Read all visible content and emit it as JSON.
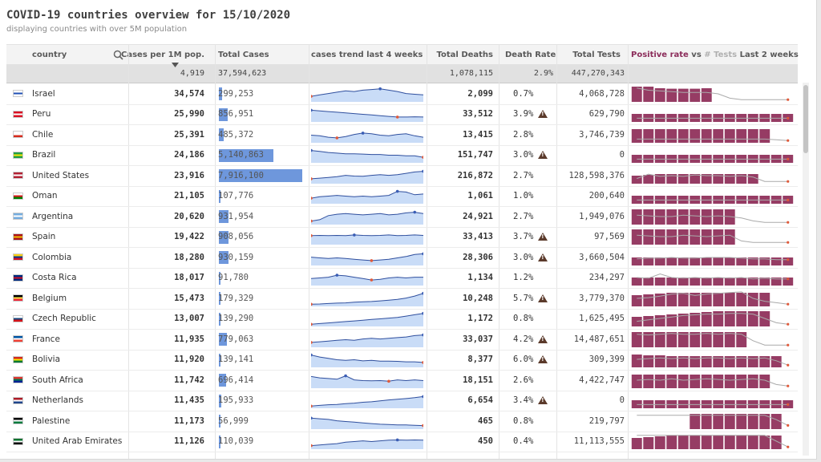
{
  "title": "COVID-19 countries overview for 15/10/2020",
  "subtitle": "displaying countries with over 5M population",
  "headers": {
    "country": "country",
    "per_million": "Cases per 1M pop.",
    "total_cases": "Total Cases",
    "trend": "cases trend last 4 weeks",
    "deaths": "Total Deaths",
    "death_rate": "Death Rate",
    "tests": "Total Tests",
    "positive_rate": "Positive rate",
    "vs": "vs",
    "hash": "#",
    "tests_word": "Tests",
    "last_2_weeks": "Last 2 weeks"
  },
  "totals": {
    "per_million": "4,919",
    "total_cases": "37,594,623",
    "deaths": "1,078,115",
    "death_rate": "2.9%",
    "tests": "447,270,343"
  },
  "colors": {
    "bar_blue": "#6e97dc",
    "positive_bar": "#963c64",
    "tests_line": "#aaaaaa",
    "trend_fill": "#c9dcf7",
    "trend_line": "#2f4f9e",
    "warning": "#5b3a2b"
  },
  "icons": {
    "search": "search-icon",
    "sort": "sort-desc-icon",
    "warning": "warning-triangle-icon"
  },
  "rows": [
    {
      "country": "Israel",
      "per_million": "34,574",
      "total_cases": "299,253",
      "cases_value": 299253,
      "deaths": "2,099",
      "death_rate": "0.7%",
      "warning": false,
      "tests": "4,068,728",
      "flag": [
        "#ffffff",
        "#1f4fb4",
        "#ffffff"
      ]
    },
    {
      "country": "Peru",
      "per_million": "25,990",
      "total_cases": "856,951",
      "cases_value": 856951,
      "deaths": "33,512",
      "death_rate": "3.9%",
      "warning": true,
      "tests": "629,790",
      "flag": [
        "#d91023",
        "#ffffff",
        "#d91023"
      ]
    },
    {
      "country": "Chile",
      "per_million": "25,391",
      "total_cases": "485,372",
      "cases_value": 485372,
      "deaths": "13,415",
      "death_rate": "2.8%",
      "warning": false,
      "tests": "3,746,739",
      "flag": [
        "#ffffff",
        "#ffffff",
        "#d52b1e"
      ]
    },
    {
      "country": "Brazil",
      "per_million": "24,186",
      "total_cases": "5,140,863",
      "cases_value": 5140863,
      "deaths": "151,747",
      "death_rate": "3.0%",
      "warning": true,
      "tests": "0",
      "flag": [
        "#229e45",
        "#f8e509",
        "#229e45"
      ]
    },
    {
      "country": "United States",
      "per_million": "23,916",
      "total_cases": "7,916,100",
      "cases_value": 7916100,
      "deaths": "216,872",
      "death_rate": "2.7%",
      "warning": false,
      "tests": "128,598,376",
      "flag": [
        "#b22234",
        "#ffffff",
        "#b22234"
      ]
    },
    {
      "country": "Oman",
      "per_million": "21,105",
      "total_cases": "107,776",
      "cases_value": 107776,
      "deaths": "1,061",
      "death_rate": "1.0%",
      "warning": false,
      "tests": "200,640",
      "flag": [
        "#ffffff",
        "#db161b",
        "#008000"
      ]
    },
    {
      "country": "Argentina",
      "per_million": "20,620",
      "total_cases": "931,954",
      "cases_value": 931954,
      "deaths": "24,921",
      "death_rate": "2.7%",
      "warning": false,
      "tests": "1,949,076",
      "flag": [
        "#74acdf",
        "#ffffff",
        "#74acdf"
      ]
    },
    {
      "country": "Spain",
      "per_million": "19,422",
      "total_cases": "908,056",
      "cases_value": 908056,
      "deaths": "33,413",
      "death_rate": "3.7%",
      "warning": true,
      "tests": "97,569",
      "flag": [
        "#aa151b",
        "#f1bf00",
        "#aa151b"
      ]
    },
    {
      "country": "Colombia",
      "per_million": "18,280",
      "total_cases": "930,159",
      "cases_value": 930159,
      "deaths": "28,306",
      "death_rate": "3.0%",
      "warning": true,
      "tests": "3,660,504",
      "flag": [
        "#fcd116",
        "#003893",
        "#ce1126"
      ]
    },
    {
      "country": "Costa Rica",
      "per_million": "18,017",
      "total_cases": "91,780",
      "cases_value": 91780,
      "deaths": "1,134",
      "death_rate": "1.2%",
      "warning": false,
      "tests": "234,297",
      "flag": [
        "#002b7f",
        "#ce1126",
        "#002b7f"
      ]
    },
    {
      "country": "Belgium",
      "per_million": "15,473",
      "total_cases": "179,329",
      "cases_value": 179329,
      "deaths": "10,248",
      "death_rate": "5.7%",
      "warning": true,
      "tests": "3,779,370",
      "flag": [
        "#000000",
        "#fae042",
        "#ed2939"
      ]
    },
    {
      "country": "Czech Republic",
      "per_million": "13,007",
      "total_cases": "139,290",
      "cases_value": 139290,
      "deaths": "1,172",
      "death_rate": "0.8%",
      "warning": false,
      "tests": "1,625,495",
      "flag": [
        "#ffffff",
        "#11457e",
        "#d7141a"
      ]
    },
    {
      "country": "France",
      "per_million": "11,935",
      "total_cases": "779,063",
      "cases_value": 779063,
      "deaths": "33,037",
      "death_rate": "4.2%",
      "warning": true,
      "tests": "14,487,651",
      "flag": [
        "#0055a4",
        "#ffffff",
        "#ef4135"
      ]
    },
    {
      "country": "Bolivia",
      "per_million": "11,920",
      "total_cases": "139,141",
      "cases_value": 139141,
      "deaths": "8,377",
      "death_rate": "6.0%",
      "warning": true,
      "tests": "309,399",
      "flag": [
        "#d52b1e",
        "#f9e300",
        "#007934"
      ]
    },
    {
      "country": "South Africa",
      "per_million": "11,742",
      "total_cases": "696,414",
      "cases_value": 696414,
      "deaths": "18,151",
      "death_rate": "2.6%",
      "warning": false,
      "tests": "4,422,747",
      "flag": [
        "#de3831",
        "#007a4d",
        "#002395"
      ]
    },
    {
      "country": "Netherlands",
      "per_million": "11,435",
      "total_cases": "195,933",
      "cases_value": 195933,
      "deaths": "6,654",
      "death_rate": "3.4%",
      "warning": true,
      "tests": "0",
      "flag": [
        "#ae1c28",
        "#ffffff",
        "#21468b"
      ]
    },
    {
      "country": "Palestine",
      "per_million": "11,173",
      "total_cases": "56,999",
      "cases_value": 56999,
      "deaths": "465",
      "death_rate": "0.8%",
      "warning": false,
      "tests": "219,797",
      "flag": [
        "#000000",
        "#ffffff",
        "#007a3d"
      ]
    },
    {
      "country": "United Arab Emirates",
      "per_million": "11,126",
      "total_cases": "110,039",
      "cases_value": 110039,
      "deaths": "450",
      "death_rate": "0.4%",
      "warning": false,
      "tests": "11,113,555",
      "flag": [
        "#00732f",
        "#ffffff",
        "#000000"
      ]
    }
  ],
  "trends": [
    [
      0.35,
      0.45,
      0.55,
      0.65,
      0.75,
      0.7,
      0.8,
      0.85,
      0.9,
      0.8,
      0.7,
      0.55,
      0.5,
      0.45
    ],
    [
      0.8,
      0.75,
      0.7,
      0.65,
      0.6,
      0.55,
      0.5,
      0.45,
      0.4,
      0.35,
      0.3,
      0.3,
      0.32,
      0.3
    ],
    [
      0.5,
      0.45,
      0.35,
      0.3,
      0.4,
      0.55,
      0.65,
      0.6,
      0.5,
      0.45,
      0.55,
      0.6,
      0.45,
      0.35
    ],
    [
      0.85,
      0.78,
      0.7,
      0.65,
      0.6,
      0.6,
      0.58,
      0.55,
      0.55,
      0.5,
      0.5,
      0.45,
      0.45,
      0.35
    ],
    [
      0.3,
      0.35,
      0.4,
      0.45,
      0.55,
      0.5,
      0.48,
      0.55,
      0.6,
      0.55,
      0.6,
      0.7,
      0.8,
      0.85
    ],
    [
      0.35,
      0.45,
      0.5,
      0.55,
      0.5,
      0.45,
      0.5,
      0.45,
      0.5,
      0.55,
      0.85,
      0.8,
      0.6,
      0.65
    ],
    [
      0.2,
      0.3,
      0.6,
      0.7,
      0.75,
      0.7,
      0.65,
      0.7,
      0.75,
      0.65,
      0.7,
      0.8,
      0.85,
      0.75
    ],
    [
      0.6,
      0.62,
      0.6,
      0.62,
      0.6,
      0.65,
      0.62,
      0.6,
      0.62,
      0.65,
      0.6,
      0.62,
      0.65,
      0.62
    ],
    [
      0.55,
      0.5,
      0.45,
      0.5,
      0.45,
      0.4,
      0.35,
      0.3,
      0.35,
      0.4,
      0.5,
      0.6,
      0.75,
      0.8
    ],
    [
      0.45,
      0.5,
      0.55,
      0.7,
      0.65,
      0.55,
      0.45,
      0.35,
      0.4,
      0.5,
      0.55,
      0.5,
      0.55,
      0.55
    ],
    [
      0.1,
      0.12,
      0.15,
      0.18,
      0.2,
      0.25,
      0.28,
      0.3,
      0.35,
      0.4,
      0.45,
      0.55,
      0.7,
      0.9
    ],
    [
      0.1,
      0.15,
      0.2,
      0.25,
      0.3,
      0.35,
      0.4,
      0.45,
      0.5,
      0.55,
      0.6,
      0.7,
      0.8,
      0.9
    ],
    [
      0.3,
      0.35,
      0.4,
      0.45,
      0.5,
      0.45,
      0.55,
      0.6,
      0.55,
      0.6,
      0.65,
      0.7,
      0.8,
      0.85
    ],
    [
      0.85,
      0.7,
      0.6,
      0.5,
      0.45,
      0.5,
      0.42,
      0.45,
      0.4,
      0.4,
      0.38,
      0.35,
      0.35,
      0.3
    ],
    [
      0.8,
      0.7,
      0.65,
      0.6,
      0.85,
      0.55,
      0.5,
      0.48,
      0.5,
      0.45,
      0.55,
      0.5,
      0.55,
      0.5
    ],
    [
      0.1,
      0.15,
      0.2,
      0.22,
      0.28,
      0.32,
      0.38,
      0.42,
      0.48,
      0.55,
      0.6,
      0.65,
      0.72,
      0.8
    ],
    [
      0.75,
      0.7,
      0.65,
      0.55,
      0.5,
      0.45,
      0.4,
      0.35,
      0.3,
      0.28,
      0.25,
      0.25,
      0.22,
      0.2
    ],
    [
      0.2,
      0.25,
      0.3,
      0.35,
      0.45,
      0.5,
      0.55,
      0.5,
      0.55,
      0.6,
      0.62,
      0.6,
      0.62,
      0.6
    ]
  ],
  "positive_bars": [
    [
      0.95,
      0.95,
      0.85,
      0.82,
      0.82,
      0.82,
      0.85,
      0.0,
      0,
      0,
      0,
      0,
      0,
      0
    ],
    [
      0.5,
      0.5,
      0.5,
      0.5,
      0.5,
      0.5,
      0.5,
      0.5,
      0.5,
      0.5,
      0.5,
      0.5,
      0.5,
      0.5
    ],
    [
      0.85,
      0.85,
      0.85,
      0.85,
      0.85,
      0.85,
      0.85,
      0.85,
      0.85,
      0.85,
      0.85,
      0.85,
      0.0,
      0.0
    ],
    [
      0.5,
      0.5,
      0.5,
      0.5,
      0.5,
      0.5,
      0.5,
      0.5,
      0.5,
      0.5,
      0.5,
      0.5,
      0.5,
      0.5
    ],
    [
      0.5,
      0.55,
      0.6,
      0.6,
      0.6,
      0.6,
      0.6,
      0.6,
      0.6,
      0.6,
      0.6,
      0.0,
      0,
      0
    ],
    [
      0.5,
      0.5,
      0.5,
      0.5,
      0.5,
      0.5,
      0.5,
      0.5,
      0.5,
      0.5,
      0.5,
      0.5,
      0.5,
      0.5
    ],
    [
      0.95,
      0.95,
      0.95,
      0.95,
      0.95,
      0.95,
      0.95,
      0.95,
      0.95,
      0.0,
      0,
      0,
      0,
      0
    ],
    [
      0.95,
      0.95,
      0.95,
      0.95,
      0.95,
      0.95,
      0.95,
      0.95,
      0.95,
      0.0,
      0,
      0,
      0,
      0
    ],
    [
      0.5,
      0.5,
      0.5,
      0.5,
      0.5,
      0.5,
      0.5,
      0.5,
      0.5,
      0.5,
      0.5,
      0.5,
      0.5,
      0.5
    ],
    [
      0.5,
      0.5,
      0.5,
      0.5,
      0.5,
      0.5,
      0.5,
      0.5,
      0.5,
      0.5,
      0.5,
      0.5,
      0.5,
      0.5
    ],
    [
      0.7,
      0.75,
      0.8,
      0.85,
      0.85,
      0.85,
      0.85,
      0.85,
      0.85,
      0.85,
      0.85,
      0.85,
      0.0,
      0
    ],
    [
      0.6,
      0.65,
      0.7,
      0.75,
      0.8,
      0.85,
      0.9,
      0.95,
      0.95,
      0.95,
      0.95,
      0.95,
      0.0,
      0
    ],
    [
      0.95,
      0.95,
      0.95,
      0.95,
      0.95,
      0.95,
      0.95,
      0.95,
      0.95,
      0.95,
      0.0,
      0,
      0,
      0
    ],
    [
      0.8,
      0.75,
      0.75,
      0.7,
      0.7,
      0.7,
      0.7,
      0.7,
      0.7,
      0.7,
      0.7,
      0.7,
      0.7,
      0.0
    ],
    [
      0.85,
      0.85,
      0.85,
      0.85,
      0.85,
      0.85,
      0.85,
      0.85,
      0.85,
      0.85,
      0.85,
      0.85,
      0.0,
      0
    ],
    [
      0.5,
      0.5,
      0.5,
      0.5,
      0.5,
      0.5,
      0.5,
      0.5,
      0.5,
      0.5,
      0.5,
      0.5,
      0.5,
      0.5
    ],
    [
      0.0,
      0.0,
      0.0,
      0.0,
      0.0,
      0.95,
      0.95,
      0.95,
      0.95,
      0.95,
      0.95,
      0.95,
      0.95,
      0.0
    ],
    [
      0.7,
      0.75,
      0.8,
      0.85,
      0.85,
      0.85,
      0.85,
      0.85,
      0.85,
      0.85,
      0.85,
      0.85,
      0.85,
      0.0
    ]
  ],
  "test_lines": [
    [
      0.9,
      0.75,
      0.7,
      0.65,
      0.6,
      0.6,
      0.6,
      0.5,
      0.2,
      0.1,
      0.1,
      0.1,
      0.1,
      0.1
    ],
    [
      0.2,
      0.2,
      0.2,
      0.2,
      0.2,
      0.2,
      0.2,
      0.2,
      0.2,
      0.2,
      0.2,
      0.2,
      0.2,
      0.2
    ],
    [
      0.2,
      0.2,
      0.2,
      0.2,
      0.2,
      0.2,
      0.2,
      0.2,
      0.2,
      0.2,
      0.2,
      0.2,
      0.15,
      0.1
    ],
    [
      0.2,
      0.2,
      0.2,
      0.2,
      0.2,
      0.2,
      0.2,
      0.2,
      0.2,
      0.2,
      0.2,
      0.2,
      0.2,
      0.2
    ],
    [
      0.3,
      0.6,
      0.45,
      0.5,
      0.45,
      0.55,
      0.5,
      0.5,
      0.45,
      0.5,
      0.4,
      0.1,
      0.1,
      0.1
    ],
    [
      0.2,
      0.2,
      0.2,
      0.2,
      0.2,
      0.2,
      0.2,
      0.2,
      0.2,
      0.2,
      0.2,
      0.2,
      0.2,
      0.2
    ],
    [
      0.6,
      0.55,
      0.5,
      0.5,
      0.6,
      0.55,
      0.5,
      0.55,
      0.5,
      0.4,
      0.2,
      0.1,
      0.1,
      0.1
    ],
    [
      0.6,
      0.55,
      0.5,
      0.5,
      0.6,
      0.55,
      0.5,
      0.55,
      0.6,
      0.2,
      0.1,
      0.1,
      0.1,
      0.1
    ],
    [
      0.4,
      0.45,
      0.45,
      0.5,
      0.45,
      0.45,
      0.5,
      0.5,
      0.5,
      0.45,
      0.4,
      0.4,
      0.35,
      0.35
    ],
    [
      0.5,
      0.45,
      0.75,
      0.5,
      0.45,
      0.5,
      0.45,
      0.5,
      0.45,
      0.5,
      0.4,
      0.45,
      0.4,
      0.4
    ],
    [
      0.5,
      0.55,
      0.65,
      0.8,
      0.85,
      0.7,
      0.8,
      0.85,
      0.9,
      0.95,
      0.5,
      0.3,
      0.2,
      0.1
    ],
    [
      0.3,
      0.4,
      0.5,
      0.6,
      0.7,
      0.75,
      0.8,
      0.8,
      0.85,
      0.85,
      0.8,
      0.5,
      0.2,
      0.1
    ],
    [
      0.85,
      0.8,
      0.85,
      0.9,
      0.85,
      0.85,
      0.9,
      0.85,
      0.9,
      0.85,
      0.4,
      0.1,
      0.1,
      0.1
    ],
    [
      0.5,
      0.55,
      0.6,
      0.55,
      0.6,
      0.55,
      0.6,
      0.6,
      0.55,
      0.6,
      0.55,
      0.6,
      0.4,
      0.1
    ],
    [
      0.5,
      0.55,
      0.5,
      0.6,
      0.5,
      0.55,
      0.6,
      0.55,
      0.5,
      0.55,
      0.6,
      0.5,
      0.2,
      0.1
    ],
    [
      0.2,
      0.2,
      0.2,
      0.2,
      0.2,
      0.2,
      0.2,
      0.2,
      0.2,
      0.2,
      0.2,
      0.2,
      0.2,
      0.2
    ],
    [
      0.9,
      0.9,
      0.9,
      0.9,
      0.9,
      0.9,
      0.9,
      0.9,
      0.9,
      0.9,
      0.9,
      0.9,
      0.6,
      0.2
    ],
    [
      0.9,
      0.9,
      0.9,
      0.9,
      0.9,
      0.9,
      0.9,
      0.9,
      0.9,
      0.9,
      0.9,
      0.9,
      0.5,
      0.1
    ]
  ]
}
